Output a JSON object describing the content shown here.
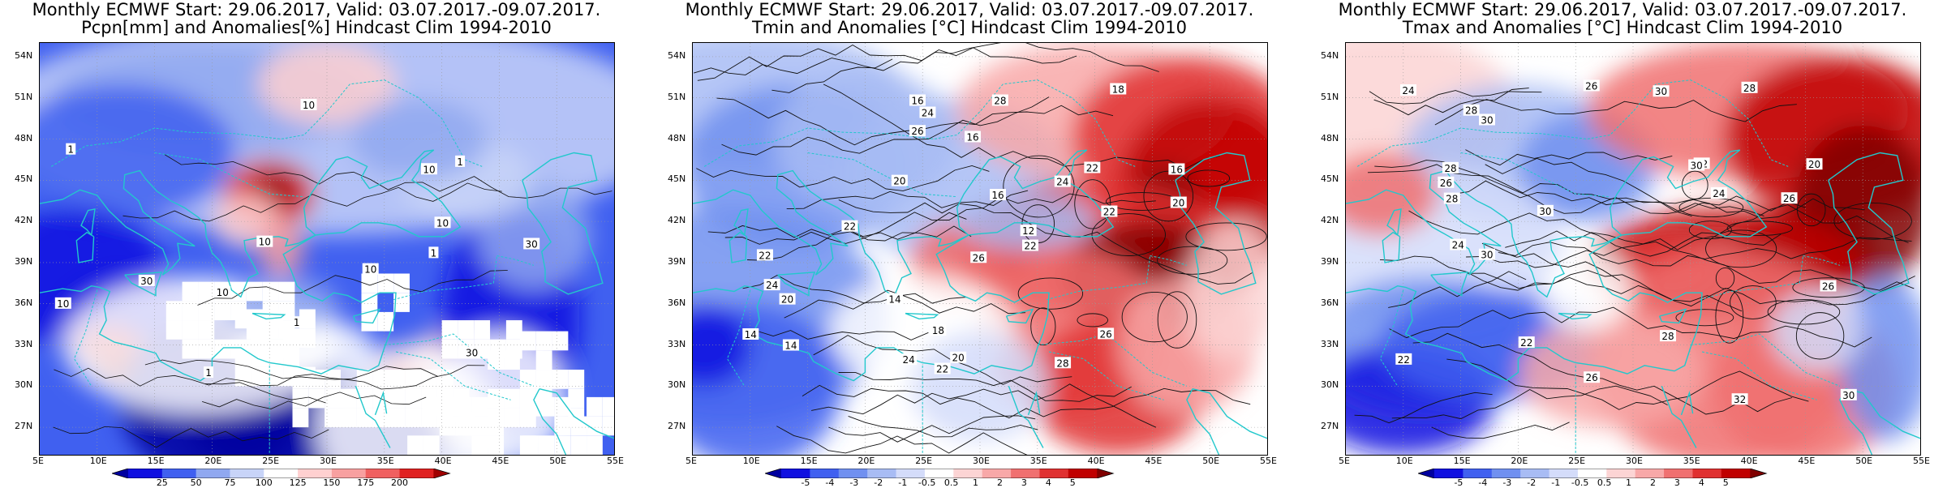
{
  "panels": [
    {
      "title_line1": "Monthly ECMWF Start: 29.06.2017, Valid: 03.07.2017.-09.07.2017.",
      "title_line2": "Pcpn[mm] and Anomalies[%] Hindcast Clim 1994-2010",
      "variable": "precipitation",
      "colorbar_labels": [
        "25",
        "50",
        "75",
        "100",
        "125",
        "150",
        "175",
        "200"
      ],
      "colorbar_colors": [
        "#0000a0",
        "#1010e0",
        "#4060f0",
        "#90a8f0",
        "#c8d4f8",
        "#ffffff",
        "#ffd0d0",
        "#f8a0a0",
        "#f06060",
        "#e02020",
        "#a00000"
      ],
      "contour_labels": [
        "10",
        "10",
        "30",
        "10",
        "10",
        "1",
        "30",
        "10",
        "1",
        "10",
        "30",
        "10",
        "1",
        "1",
        "1"
      ]
    },
    {
      "title_line1": "Monthly ECMWF Start: 29.06.2017, Valid: 03.07.2017.-09.07.2017.",
      "title_line2": "Tmin and Anomalies [°C] Hindcast Clim 1994-2010",
      "variable": "tmin",
      "colorbar_labels": [
        "-5",
        "-4",
        "-3",
        "-2",
        "-1",
        "-0.5",
        "0.5",
        "1",
        "2",
        "3",
        "4",
        "5"
      ],
      "colorbar_colors": [
        "#0000a0",
        "#1010e0",
        "#4060f0",
        "#7090f0",
        "#a8bcf4",
        "#d4dcfa",
        "#ffffff",
        "#fcd4d4",
        "#f8a8a8",
        "#f07070",
        "#e03030",
        "#c00000",
        "#800000"
      ],
      "contour_labels": [
        "14",
        "12",
        "16",
        "20",
        "16",
        "22",
        "22",
        "26",
        "16",
        "18",
        "14",
        "22",
        "24",
        "20",
        "16",
        "14",
        "24",
        "26",
        "20",
        "22",
        "28",
        "24",
        "26",
        "22",
        "20",
        "22",
        "24",
        "18",
        "28"
      ]
    },
    {
      "title_line1": "Monthly ECMWF Start: 29.06.2017, Valid: 03.07.2017.-09.07.2017.",
      "title_line2": "Tmax and Anomalies [°C] Hindcast Clim 1994-2010",
      "variable": "tmax",
      "colorbar_labels": [
        "-5",
        "-4",
        "-3",
        "-2",
        "-1",
        "-0.5",
        "0.5",
        "1",
        "2",
        "3",
        "4",
        "5"
      ],
      "colorbar_colors": [
        "#0000a0",
        "#1010e0",
        "#4060f0",
        "#7090f0",
        "#a8bcf4",
        "#d4dcfa",
        "#ffffff",
        "#fcd4d4",
        "#f8a8a8",
        "#f07070",
        "#e03030",
        "#c00000",
        "#800000"
      ],
      "contour_labels": [
        "22",
        "20",
        "22",
        "26",
        "24",
        "28",
        "30",
        "28",
        "30",
        "26",
        "24",
        "32",
        "30",
        "28",
        "26",
        "24",
        "30",
        "32",
        "28",
        "30",
        "26",
        "28",
        "26",
        "30"
      ]
    }
  ],
  "axes": {
    "lat_labels": [
      "54N",
      "51N",
      "48N",
      "45N",
      "42N",
      "39N",
      "36N",
      "33N",
      "30N",
      "27N"
    ],
    "lon_labels": [
      "5E",
      "10E",
      "15E",
      "20E",
      "25E",
      "30E",
      "35E",
      "40E",
      "45E",
      "50E",
      "55E"
    ]
  }
}
